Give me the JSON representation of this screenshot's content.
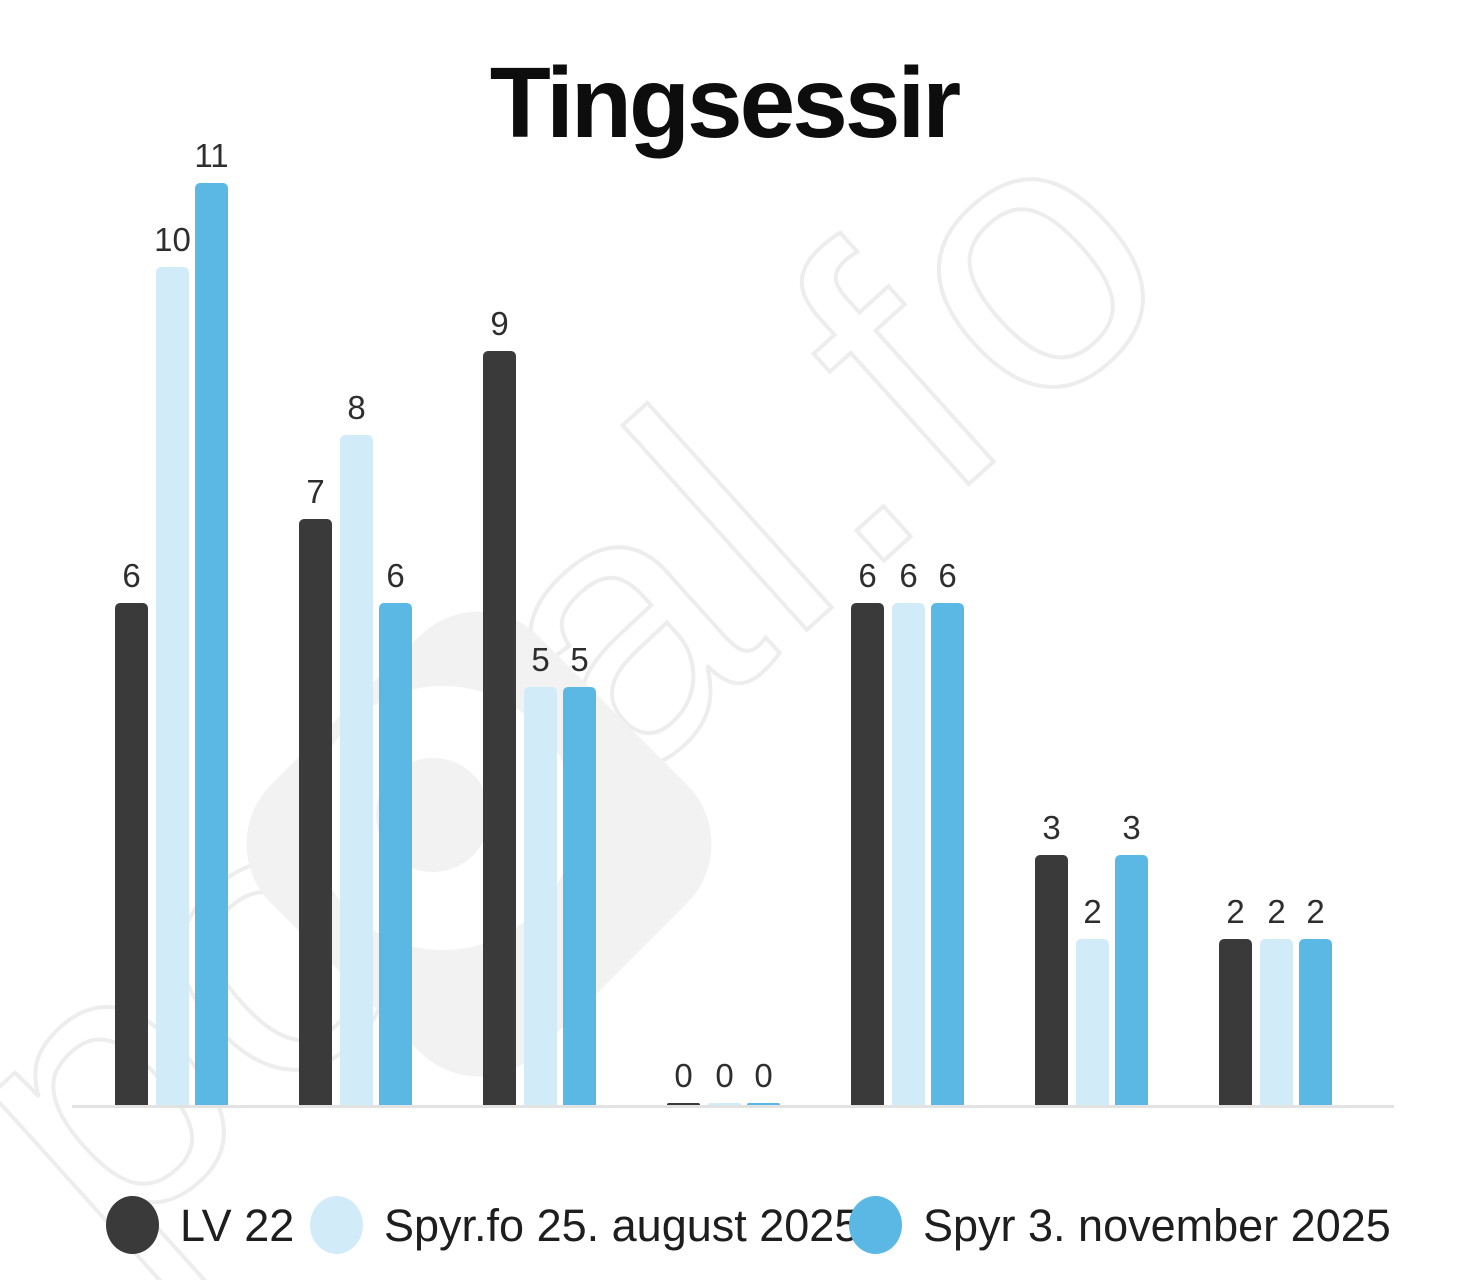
{
  "title": "Tingsessir",
  "watermark": {
    "text": "portal.fo"
  },
  "legend": {
    "items": [
      {
        "label": "LV 22",
        "color": "#3a3a3a"
      },
      {
        "label": "Spyr.fo 25. august 2025",
        "color": "#d2ebf8"
      },
      {
        "label": "Spyr 3. november 2025",
        "color": "#5bb8e4"
      }
    ]
  },
  "chart_data": {
    "type": "bar",
    "title": "Tingsessir",
    "categories": [
      "",
      "",
      "",
      "",
      "",
      "",
      ""
    ],
    "series": [
      {
        "name": "LV 22",
        "color": "#3a3a3a",
        "values": [
          6,
          7,
          9,
          0,
          6,
          3,
          2
        ]
      },
      {
        "name": "Spyr.fo 25. august 2025",
        "color": "#d2ebf8",
        "values": [
          10,
          8,
          5,
          0,
          6,
          2,
          2
        ]
      },
      {
        "name": "Spyr 3. november 2025",
        "color": "#5bb8e4",
        "values": [
          11,
          6,
          5,
          0,
          6,
          3,
          2
        ]
      }
    ],
    "ylim": [
      0,
      11
    ],
    "grid": false,
    "x_axis_labels_visible": false,
    "value_labels": true,
    "legend_position": "bottom"
  }
}
